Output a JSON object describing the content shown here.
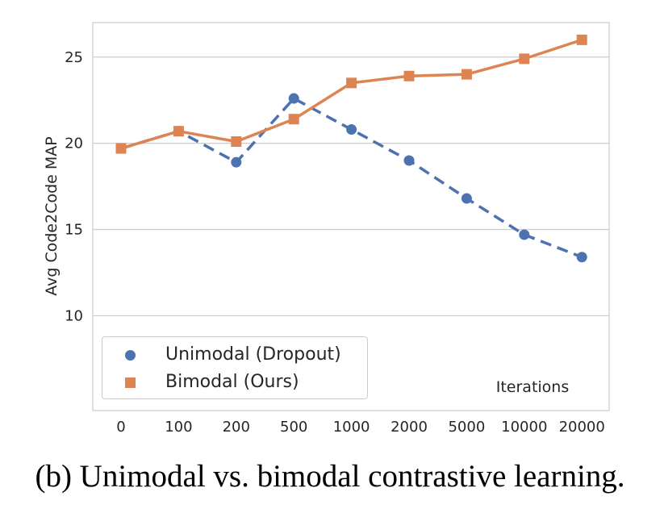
{
  "chart_data": {
    "type": "line",
    "title": "",
    "xlabel": "Iterations",
    "ylabel": "Avg Code2Code MAP",
    "categories": [
      "0",
      "100",
      "200",
      "500",
      "1000",
      "2000",
      "5000",
      "10000",
      "20000"
    ],
    "ylim": [
      4.5,
      27
    ],
    "yticks": [
      10,
      15,
      20,
      25
    ],
    "grid": "horizontal",
    "legend_position": "bottom-left",
    "series": [
      {
        "name": "Unimodal (Dropout)",
        "values": [
          19.7,
          20.7,
          18.9,
          22.6,
          20.8,
          19.0,
          16.8,
          14.7,
          13.4
        ],
        "color": "#4c72b0",
        "marker": "circle",
        "line_style": "dashed"
      },
      {
        "name": "Bimodal (Ours)",
        "values": [
          19.7,
          20.7,
          20.1,
          21.4,
          23.5,
          23.9,
          24.0,
          24.9,
          26.0
        ],
        "color": "#dd8452",
        "marker": "square",
        "line_style": "solid"
      }
    ]
  },
  "caption": "(b) Unimodal vs. bimodal contrastive learning."
}
